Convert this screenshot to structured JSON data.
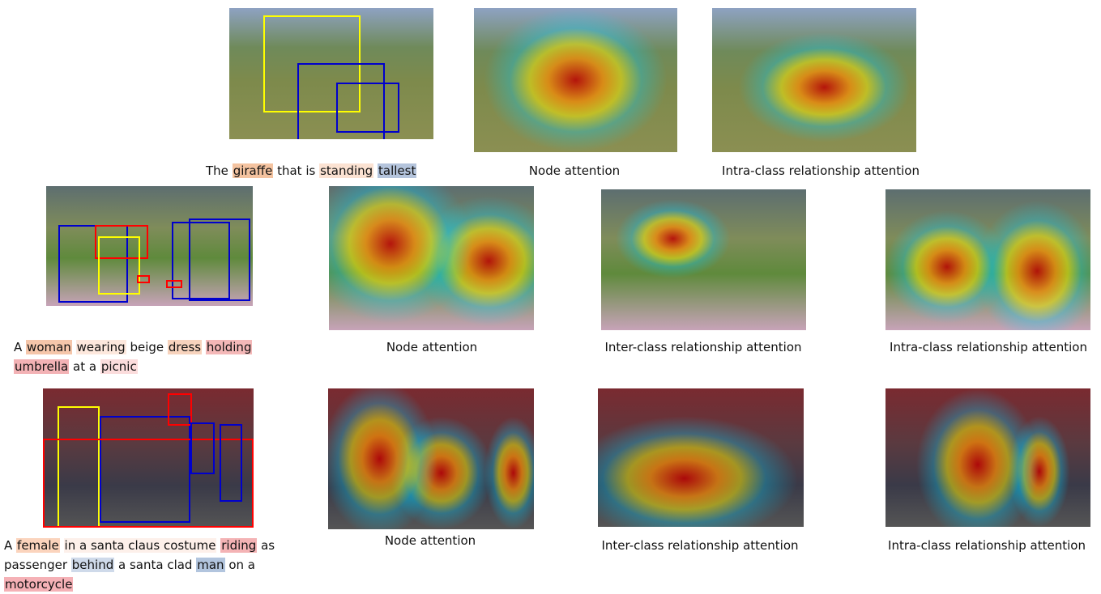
{
  "rows": [
    {
      "panels": [
        {
          "segments": [
            {
              "text": "The"
            },
            {
              "text": "giraffe",
              "color": "#f4c3a0"
            },
            {
              "text": "that is"
            },
            {
              "text": "standing",
              "color": "#fbe2d2"
            },
            {
              "text": "tallest",
              "color": "#b4c4dc"
            }
          ]
        },
        {
          "label": "Node attention"
        },
        {
          "label": "Intra-class relationship attention"
        }
      ]
    },
    {
      "panels": [
        {
          "segments": [
            {
              "text": "A"
            },
            {
              "text": "woman",
              "color": "#f5c6aa"
            },
            {
              "text": "wearing",
              "color": "#fde8dd"
            },
            {
              "text": "beige"
            },
            {
              "text": "dress",
              "color": "#f7d3bd"
            },
            {
              "text": "holding",
              "color": "#f4b8b8"
            },
            {
              "text": "umbrella",
              "color": "#f3b2b5"
            },
            {
              "text": "at a"
            },
            {
              "text": "picnic",
              "color": "#fbdcdc"
            }
          ]
        },
        {
          "label": "Node attention"
        },
        {
          "label": "Inter-class relationship attention"
        },
        {
          "label": "Intra-class relationship attention"
        }
      ]
    },
    {
      "panels": [
        {
          "segments": [
            {
              "text": "A"
            },
            {
              "text": "female",
              "color": "#fbd4bd"
            },
            {
              "text": "in a santa claus costume",
              "color": "#fdf0ea"
            },
            {
              "text": "riding",
              "color": "#f4b3b5"
            },
            {
              "text": "as passenger"
            },
            {
              "text": "behind",
              "color": "#cfdaea"
            },
            {
              "text": "a santa clad"
            },
            {
              "text": "man",
              "color": "#b2c5de"
            },
            {
              "text": "on a"
            },
            {
              "text": "motorcycle",
              "color": "#f5b1b6"
            }
          ]
        },
        {
          "label": "Node attention"
        },
        {
          "label": "Inter-class relationship attention"
        },
        {
          "label": "Intra-class relationship attention"
        }
      ]
    }
  ]
}
